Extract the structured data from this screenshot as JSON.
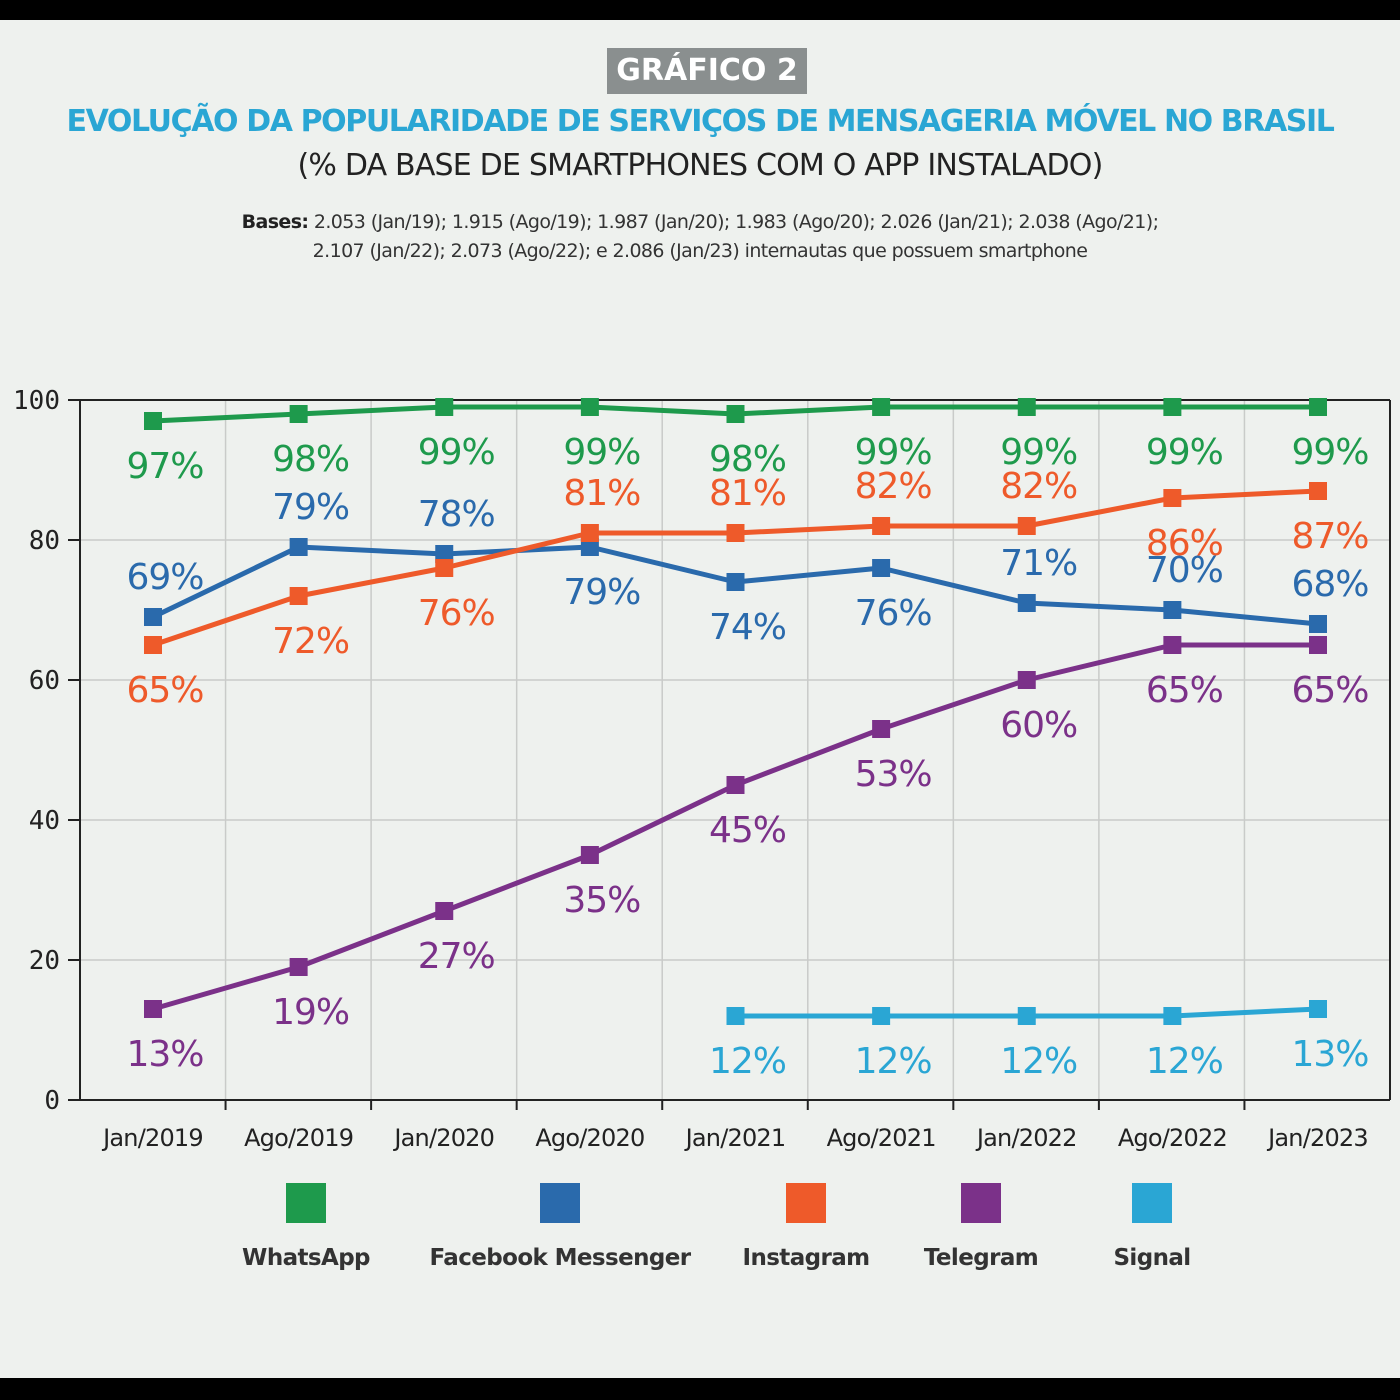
{
  "header": {
    "badge": "GRÁFICO 2",
    "title": "EVOLUÇÃO DA POPULARIDADE DE SERVIÇOS DE MENSAGERIA MÓVEL NO BRASIL",
    "subtitle": "(% DA BASE DE SMARTPHONES COM O APP INSTALADO)",
    "bases_label": "Bases:",
    "bases_line1": "2.053 (Jan/19); 1.915 (Ago/19); 1.987 (Jan/20); 1.983 (Ago/20); 2.026 (Jan/21); 2.038 (Ago/21);",
    "bases_line2": "2.107 (Jan/22); 2.073 (Ago/22); e 2.086 (Jan/23) internautas que possuem smartphone"
  },
  "chart_data": {
    "type": "line",
    "categories": [
      "Jan/2019",
      "Ago/2019",
      "Jan/2020",
      "Ago/2020",
      "Jan/2021",
      "Ago/2021",
      "Jan/2022",
      "Ago/2022",
      "Jan/2023"
    ],
    "ylim": [
      0,
      100
    ],
    "yticks": [
      0,
      20,
      40,
      60,
      80,
      100
    ],
    "grid": true,
    "legend_position": "bottom",
    "series": [
      {
        "name": "WhatsApp",
        "color": "#1e9a4c",
        "values": [
          97,
          98,
          99,
          99,
          98,
          99,
          99,
          99,
          99
        ],
        "labels": [
          "97%",
          "98%",
          "99%",
          "99%",
          "98%",
          "99%",
          "99%",
          "99%",
          "99%"
        ]
      },
      {
        "name": "Facebook Messenger",
        "color": "#2a6aac",
        "values": [
          69,
          79,
          78,
          79,
          74,
          76,
          71,
          70,
          68
        ],
        "labels": [
          "69%",
          "79%",
          "78%",
          "79%",
          "74%",
          "76%",
          "71%",
          "70%",
          "68%"
        ]
      },
      {
        "name": "Instagram",
        "color": "#ee5a2a",
        "values": [
          65,
          72,
          76,
          81,
          81,
          82,
          82,
          86,
          87
        ],
        "labels": [
          "65%",
          "72%",
          "76%",
          "81%",
          "81%",
          "82%",
          "82%",
          "86%",
          "87%"
        ]
      },
      {
        "name": "Telegram",
        "color": "#7b3189",
        "values": [
          13,
          19,
          27,
          35,
          45,
          53,
          60,
          65,
          65
        ],
        "labels": [
          "13%",
          "19%",
          "27%",
          "35%",
          "45%",
          "53%",
          "60%",
          "65%",
          "65%"
        ]
      },
      {
        "name": "Signal",
        "color": "#2aa6d4",
        "values": [
          null,
          null,
          null,
          null,
          12,
          12,
          12,
          12,
          13
        ],
        "labels": [
          null,
          null,
          null,
          null,
          "12%",
          "12%",
          "12%",
          "12%",
          "13%"
        ]
      }
    ]
  }
}
